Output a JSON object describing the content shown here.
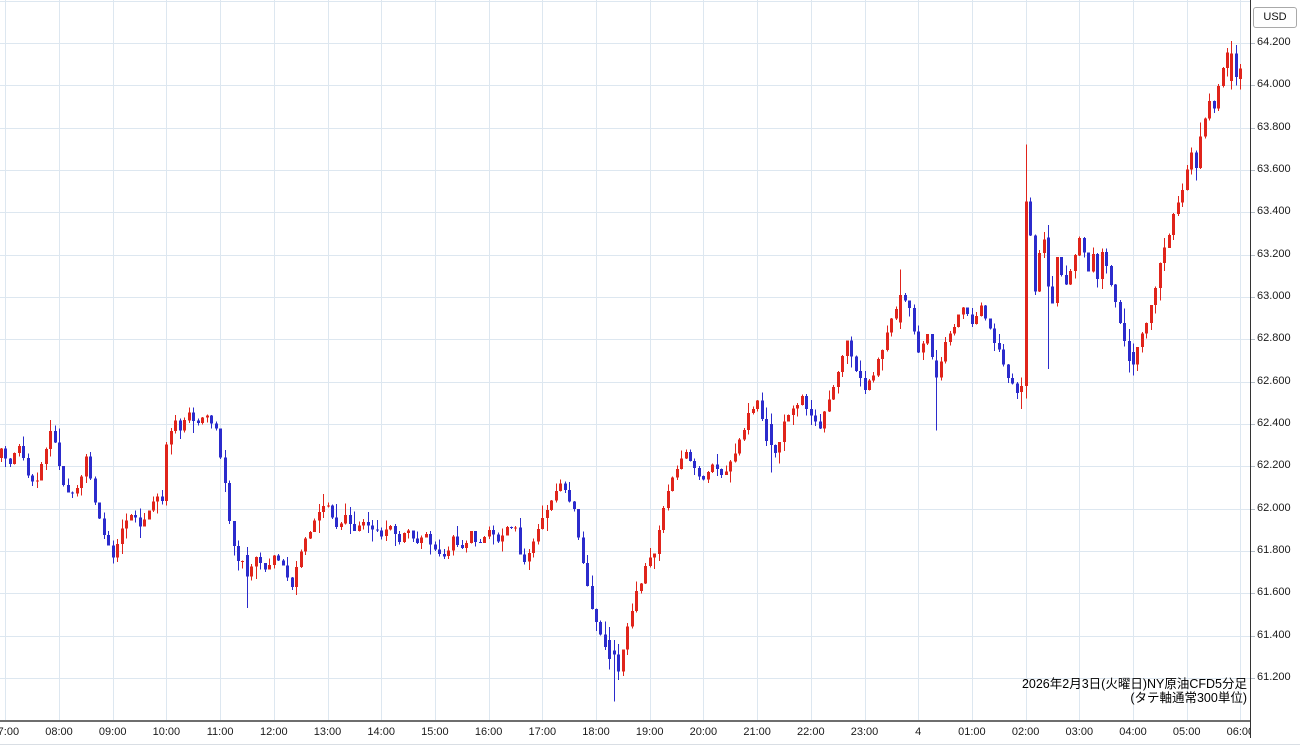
{
  "annotation": {
    "line1": "2026年2月3日(火曜日)NY原油CFD5分足",
    "line2": "(タテ軸通常300単位)"
  },
  "chart_data": {
    "type": "candlestick",
    "instrument": "NY原油CFD",
    "interval": "5分足",
    "date": "2026年2月3日(火曜日)",
    "scale_note": "タテ軸通常300単位",
    "price_axis": {
      "currency_label": "USD",
      "unit": "USD",
      "tick_step": 0.2,
      "ticks": [
        64.2,
        64.0,
        63.8,
        63.6,
        63.4,
        63.2,
        63.0,
        62.8,
        62.6,
        62.4,
        62.2,
        62.0,
        61.8,
        61.6,
        61.4,
        61.2
      ],
      "visible_min": 61.1,
      "visible_max": 64.3
    },
    "time_axis": {
      "start": "07:00",
      "end": "06:00",
      "labels": [
        "07:00",
        "08:00",
        "09:00",
        "10:00",
        "11:00",
        "12:00",
        "13:00",
        "14:00",
        "15:00",
        "16:00",
        "17:00",
        "18:00",
        "19:00",
        "20:00",
        "21:00",
        "22:00",
        "23:00",
        "4",
        "01:00",
        "02:00",
        "03:00",
        "04:00",
        "05:00",
        "06:00"
      ],
      "midnight_date_label": "4"
    },
    "colors": {
      "up": "#e0241b",
      "down": "#2b2bcc",
      "grid": "#dde7f0"
    },
    "grid": true,
    "session_high": 64.21,
    "session_low": 61.09,
    "noise_seed": 20260203,
    "path_keyframes": [
      [
        -10,
        62.24
      ],
      [
        0,
        62.28
      ],
      [
        10,
        62.2
      ],
      [
        20,
        62.3
      ],
      [
        30,
        62.15
      ],
      [
        40,
        62.12
      ],
      [
        50,
        62.28
      ],
      [
        55,
        62.36
      ],
      [
        60,
        62.3
      ],
      [
        70,
        62.1
      ],
      [
        80,
        62.06
      ],
      [
        90,
        62.15
      ],
      [
        95,
        62.24
      ],
      [
        105,
        62.02
      ],
      [
        115,
        61.88
      ],
      [
        125,
        61.78
      ],
      [
        135,
        61.9
      ],
      [
        145,
        61.97
      ],
      [
        155,
        61.92
      ],
      [
        165,
        62.0
      ],
      [
        175,
        62.06
      ],
      [
        180,
        62.05
      ],
      [
        185,
        62.3
      ],
      [
        195,
        62.42
      ],
      [
        200,
        62.38
      ],
      [
        210,
        62.45
      ],
      [
        220,
        62.4
      ],
      [
        230,
        62.44
      ],
      [
        240,
        62.38
      ],
      [
        248,
        62.18
      ],
      [
        256,
        61.92
      ],
      [
        263,
        61.73
      ],
      [
        270,
        61.76
      ],
      [
        275,
        61.69
      ],
      [
        285,
        61.76
      ],
      [
        295,
        61.7
      ],
      [
        305,
        61.77
      ],
      [
        315,
        61.73
      ],
      [
        325,
        61.64
      ],
      [
        335,
        61.8
      ],
      [
        345,
        61.9
      ],
      [
        355,
        61.98
      ],
      [
        365,
        62.02
      ],
      [
        375,
        61.91
      ],
      [
        385,
        61.96
      ],
      [
        395,
        61.89
      ],
      [
        405,
        61.95
      ],
      [
        415,
        61.9
      ],
      [
        425,
        61.87
      ],
      [
        435,
        61.93
      ],
      [
        445,
        61.85
      ],
      [
        455,
        61.9
      ],
      [
        465,
        61.83
      ],
      [
        475,
        61.88
      ],
      [
        485,
        61.8
      ],
      [
        495,
        61.77
      ],
      [
        505,
        61.86
      ],
      [
        515,
        61.81
      ],
      [
        525,
        61.88
      ],
      [
        535,
        61.83
      ],
      [
        545,
        61.89
      ],
      [
        555,
        61.85
      ],
      [
        565,
        61.91
      ],
      [
        575,
        61.92
      ],
      [
        582,
        61.74
      ],
      [
        592,
        61.8
      ],
      [
        605,
        61.95
      ],
      [
        615,
        62.04
      ],
      [
        625,
        62.13
      ],
      [
        632,
        62.06
      ],
      [
        640,
        62.0
      ],
      [
        650,
        61.75
      ],
      [
        660,
        61.52
      ],
      [
        670,
        61.4
      ],
      [
        680,
        61.3
      ],
      [
        690,
        61.24
      ],
      [
        700,
        61.45
      ],
      [
        710,
        61.6
      ],
      [
        720,
        61.72
      ],
      [
        730,
        61.8
      ],
      [
        740,
        62.0
      ],
      [
        750,
        62.15
      ],
      [
        760,
        62.25
      ],
      [
        765,
        62.28
      ],
      [
        775,
        62.18
      ],
      [
        785,
        62.14
      ],
      [
        795,
        62.22
      ],
      [
        805,
        62.15
      ],
      [
        815,
        62.21
      ],
      [
        825,
        62.33
      ],
      [
        835,
        62.44
      ],
      [
        845,
        62.5
      ],
      [
        855,
        62.33
      ],
      [
        865,
        62.25
      ],
      [
        875,
        62.4
      ],
      [
        885,
        62.46
      ],
      [
        895,
        62.52
      ],
      [
        905,
        62.43
      ],
      [
        915,
        62.38
      ],
      [
        925,
        62.52
      ],
      [
        935,
        62.64
      ],
      [
        945,
        62.78
      ],
      [
        955,
        62.66
      ],
      [
        965,
        62.57
      ],
      [
        975,
        62.63
      ],
      [
        985,
        62.76
      ],
      [
        995,
        62.9
      ],
      [
        1005,
        63.01
      ],
      [
        1015,
        62.94
      ],
      [
        1025,
        62.73
      ],
      [
        1035,
        62.82
      ],
      [
        1045,
        62.6
      ],
      [
        1055,
        62.8
      ],
      [
        1065,
        62.87
      ],
      [
        1075,
        62.94
      ],
      [
        1085,
        62.88
      ],
      [
        1095,
        62.96
      ],
      [
        1105,
        62.84
      ],
      [
        1115,
        62.74
      ],
      [
        1125,
        62.62
      ],
      [
        1135,
        62.55
      ],
      [
        1140,
        62.58
      ],
      [
        1145,
        63.45
      ],
      [
        1150,
        63.3
      ],
      [
        1155,
        63.02
      ],
      [
        1160,
        63.2
      ],
      [
        1165,
        63.28
      ],
      [
        1170,
        63.05
      ],
      [
        1175,
        62.98
      ],
      [
        1180,
        63.18
      ],
      [
        1185,
        63.1
      ],
      [
        1190,
        63.05
      ],
      [
        1195,
        63.12
      ],
      [
        1200,
        63.2
      ],
      [
        1205,
        63.28
      ],
      [
        1210,
        63.2
      ],
      [
        1215,
        63.12
      ],
      [
        1220,
        63.2
      ],
      [
        1225,
        63.08
      ],
      [
        1230,
        63.22
      ],
      [
        1235,
        63.15
      ],
      [
        1240,
        63.05
      ],
      [
        1245,
        62.98
      ],
      [
        1250,
        62.88
      ],
      [
        1255,
        62.78
      ],
      [
        1260,
        62.7
      ],
      [
        1270,
        62.76
      ],
      [
        1280,
        62.88
      ],
      [
        1285,
        62.95
      ],
      [
        1290,
        63.05
      ],
      [
        1295,
        63.15
      ],
      [
        1300,
        63.22
      ],
      [
        1305,
        63.3
      ],
      [
        1310,
        63.38
      ],
      [
        1315,
        63.45
      ],
      [
        1320,
        63.52
      ],
      [
        1325,
        63.6
      ],
      [
        1330,
        63.68
      ],
      [
        1335,
        63.62
      ],
      [
        1340,
        63.75
      ],
      [
        1345,
        63.85
      ],
      [
        1350,
        63.92
      ],
      [
        1355,
        63.88
      ],
      [
        1360,
        64.0
      ],
      [
        1365,
        64.08
      ],
      [
        1370,
        64.15
      ],
      [
        1375,
        64.18
      ],
      [
        1385,
        64.08
      ]
    ],
    "candle_overrides": {
      "54": {
        "o": 61.78,
        "h": 61.82,
        "l": 61.53,
        "c": 61.68
      },
      "135": {
        "o": 61.38,
        "h": 61.44,
        "l": 61.24,
        "c": 61.29
      },
      "136": {
        "o": 61.33,
        "h": 61.38,
        "l": 61.09,
        "c": 61.31
      },
      "137": {
        "o": 61.31,
        "h": 61.36,
        "l": 61.19,
        "c": 61.23
      },
      "171": {
        "o": 62.4,
        "h": 62.45,
        "l": 62.17,
        "c": 62.3
      },
      "200": {
        "o": 62.88,
        "h": 63.13,
        "l": 62.85,
        "c": 63.01
      },
      "208": {
        "o": 62.7,
        "h": 62.75,
        "l": 62.37,
        "c": 62.62
      },
      "227": {
        "o": 62.55,
        "h": 62.62,
        "l": 62.47,
        "c": 62.58
      },
      "228": {
        "o": 62.58,
        "h": 63.72,
        "l": 62.52,
        "c": 63.45
      },
      "233": {
        "o": 63.28,
        "h": 63.34,
        "l": 62.66,
        "c": 63.05
      },
      "252": {
        "o": 62.74,
        "h": 62.78,
        "l": 62.63,
        "c": 62.68
      },
      "274": {
        "o": 64.02,
        "h": 64.21,
        "l": 63.98,
        "c": 64.15
      },
      "275": {
        "o": 64.15,
        "h": 64.19,
        "l": 64.0,
        "c": 64.04
      },
      "276": {
        "o": 64.03,
        "h": 64.1,
        "l": 63.98,
        "c": 64.08
      }
    }
  }
}
